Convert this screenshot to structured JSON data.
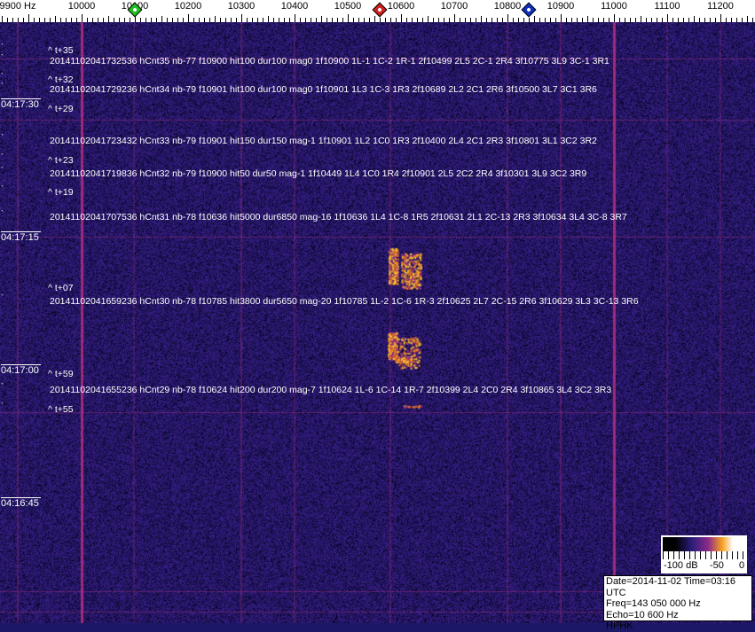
{
  "axis": {
    "unit": "Hz",
    "labels": [
      {
        "freq": 9900,
        "text": "9900 Hz"
      },
      {
        "freq": 10000,
        "text": "10000"
      },
      {
        "freq": 10100,
        "text": "10100"
      },
      {
        "freq": 10200,
        "text": "10200"
      },
      {
        "freq": 10300,
        "text": "10300"
      },
      {
        "freq": 10400,
        "text": "10400"
      },
      {
        "freq": 10500,
        "text": "10500"
      },
      {
        "freq": 10600,
        "text": "10600"
      },
      {
        "freq": 10700,
        "text": "10700"
      },
      {
        "freq": 10800,
        "text": "10800"
      },
      {
        "freq": 10900,
        "text": "10900"
      },
      {
        "freq": 11000,
        "text": "11000"
      },
      {
        "freq": 11100,
        "text": "11100"
      },
      {
        "freq": 11200,
        "text": "11200"
      }
    ],
    "markers": [
      {
        "name": "green-marker",
        "freq": 10100,
        "color": "#20c020"
      },
      {
        "name": "red-marker",
        "freq": 10560,
        "color": "#d02020"
      },
      {
        "name": "blue-marker",
        "freq": 10840,
        "color": "#1030c0"
      }
    ]
  },
  "timestamps": [
    "04:17:30",
    "04:17:15",
    "04:17:00",
    "04:16:45"
  ],
  "annotations": [
    {
      "kind": "delta",
      "text": "^ t+35"
    },
    {
      "kind": "event",
      "text": "20141102041732536 hCnt35 nb-77 f10900 hit100 dur100 mag0 1f10900 1L-1 1C-2 1R-1 2f10499 2L5 2C-1 2R4 3f10775 3L9 3C-1 3R1"
    },
    {
      "kind": "delta",
      "text": "^ t+32"
    },
    {
      "kind": "event",
      "text": "20141102041729236 hCnt34 nb-79 f10901 hit100 dur100 mag0 1f10901 1L3 1C-3 1R3 2f10689 2L2 2C1 2R6 3f10500 3L7 3C1 3R6"
    },
    {
      "kind": "delta",
      "text": "^ t+29"
    },
    {
      "kind": "event",
      "text": "20141102041723432 hCnt33 nb-79 f10901 hit150 dur150 mag-1 1f10901 1L2 1C0 1R3 2f10400 2L4 2C1 2R3 3f10801 3L1 3C2 3R2"
    },
    {
      "kind": "delta",
      "text": "^ t+23"
    },
    {
      "kind": "event",
      "text": "20141102041719836 hCnt32 nb-79 f10900 hit50 dur50 mag-1 1f10449 1L4 1C0 1R4 2f10901 2L5 2C2 2R4 3f10301 3L9 3C2 3R9"
    },
    {
      "kind": "delta",
      "text": "^ t+19"
    },
    {
      "kind": "event",
      "text": "20141102041707536 hCnt31 nb-78 f10636 hit5000 dur6850 mag-16 1f10636 1L4 1C-8 1R5 2f10631 2L1 2C-13 2R3 3f10634 3L4 3C-8 3R7"
    },
    {
      "kind": "delta",
      "text": "^ t+07"
    },
    {
      "kind": "event",
      "text": "20141102041659236 hCnt30 nb-78 f10785 hit3800 dur5650 mag-20 1f10785 1L-2 1C-6 1R-3 2f10625 2L7 2C-15 2R6 3f10629 3L3 3C-13 3R6"
    },
    {
      "kind": "delta",
      "text": "^ t+59"
    },
    {
      "kind": "event",
      "text": "20141102041655236 hCnt29 nb-78 f10624 hit200 dur200 mag-7 1f10624 1L-6 1C-14 1R-7 2f10399 2L4 2C0 2R4 3f10865 3L4 3C2 3R3"
    },
    {
      "kind": "delta",
      "text": "^ t+55"
    }
  ],
  "colorbar": {
    "labels": [
      "-100 dB",
      "-50",
      "0"
    ]
  },
  "info": {
    "date_time": "Date=2014-11-02 Time=03:16 UTC",
    "freq": "Freq=143 050 000 Hz",
    "echo": "Echo=10 600 Hz",
    "station": "HPHK"
  },
  "colors": {
    "background": "#1c1868",
    "carrier_line": "#b03080",
    "signal": "#f8b020"
  }
}
